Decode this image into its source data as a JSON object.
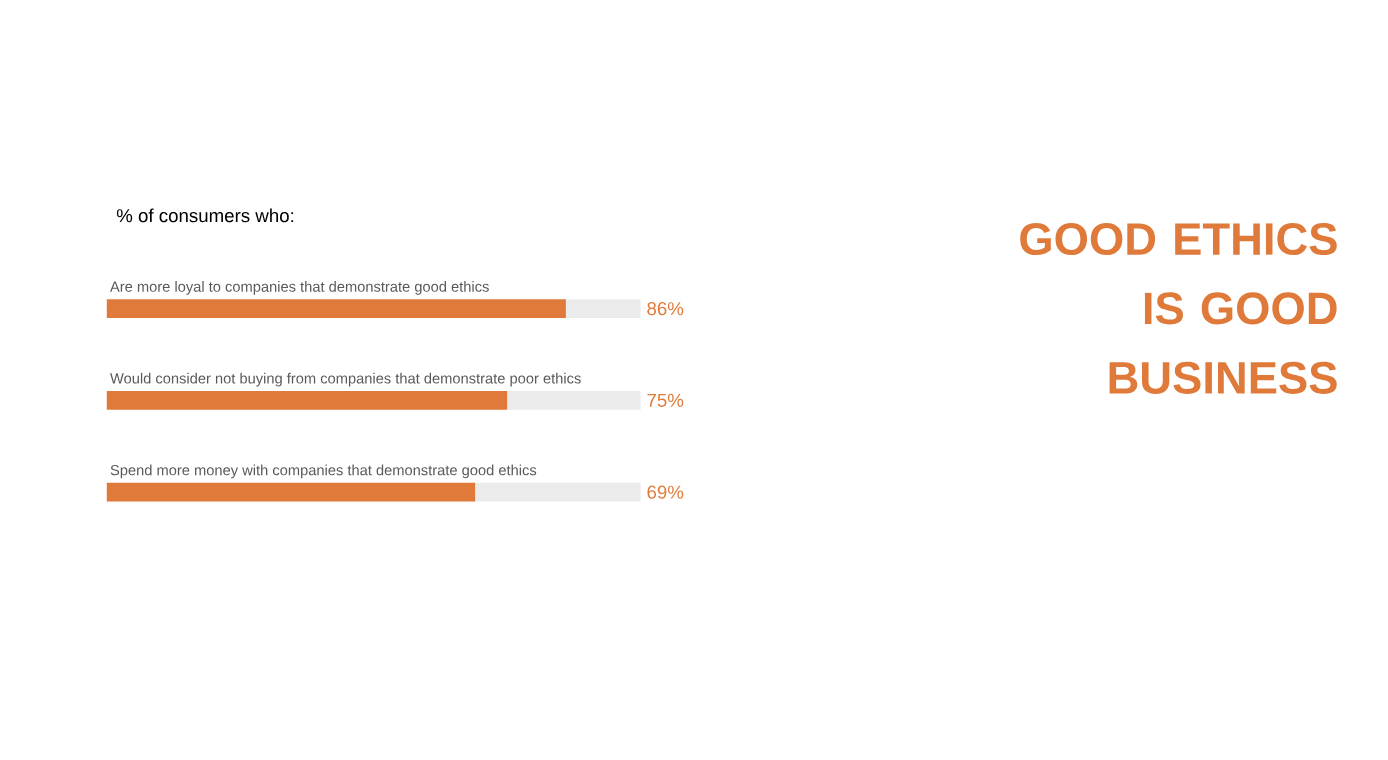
{
  "chart_data": {
    "type": "bar",
    "orientation": "horizontal",
    "title": "GOOD ETHICS IS GOOD BUSINESS",
    "subtitle": "% of consumers who:",
    "categories": [
      "Are more loyal to companies that demonstrate good ethics",
      "Would consider not buying from companies that demonstrate poor ethics",
      "Spend more money with companies that demonstrate good ethics"
    ],
    "stacked": true,
    "series": [
      {
        "color": "#e07a3a",
        "values": [
          86,
          75,
          69
        ],
        "value_labels": [
          "86%",
          "75%",
          "69%"
        ]
      },
      {
        "color": "#ebebeb",
        "values": [
          14,
          25,
          31
        ]
      }
    ],
    "xlim": [
      0,
      100
    ]
  }
}
